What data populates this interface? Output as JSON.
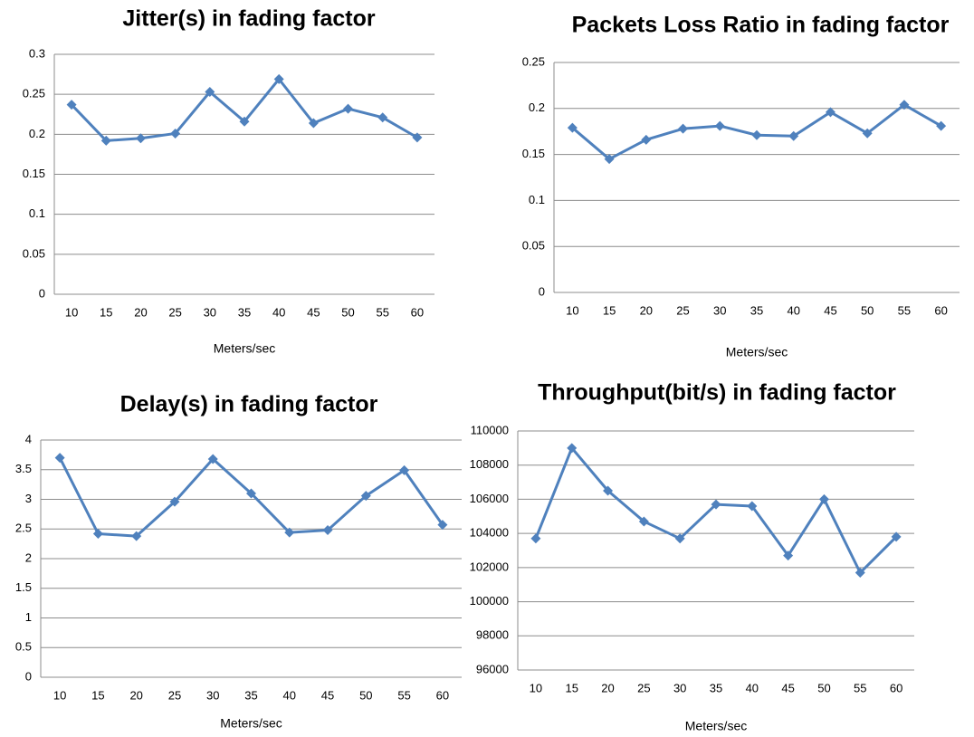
{
  "chart_data": [
    {
      "type": "line",
      "title": "Jitter(s) in fading factor",
      "x_label": "Meters/sec",
      "categories": [
        10,
        15,
        20,
        25,
        30,
        35,
        40,
        45,
        50,
        55,
        60
      ],
      "values": [
        0.237,
        0.192,
        0.195,
        0.201,
        0.253,
        0.216,
        0.269,
        0.214,
        0.232,
        0.221,
        0.196
      ],
      "color": "#4f81bd",
      "ylim": [
        0,
        0.3
      ],
      "yticks": [
        0,
        0.05,
        0.1,
        0.15,
        0.2,
        0.25,
        0.3
      ],
      "grid": true
    },
    {
      "type": "line",
      "title": "Packets Loss Ratio in fading factor",
      "x_label": "Meters/sec",
      "categories": [
        10,
        15,
        20,
        25,
        30,
        35,
        40,
        45,
        50,
        55,
        60
      ],
      "values": [
        0.179,
        0.145,
        0.166,
        0.178,
        0.181,
        0.171,
        0.17,
        0.196,
        0.173,
        0.204,
        0.181
      ],
      "color": "#4f81bd",
      "ylim": [
        0,
        0.25
      ],
      "yticks": [
        0,
        0.05,
        0.1,
        0.15,
        0.2,
        0.25
      ],
      "grid": true
    },
    {
      "type": "line",
      "title": "Delay(s) in fading factor",
      "x_label": "Meters/sec",
      "categories": [
        10,
        15,
        20,
        25,
        30,
        35,
        40,
        45,
        50,
        55,
        60
      ],
      "values": [
        3.7,
        2.42,
        2.38,
        2.96,
        3.68,
        3.1,
        2.44,
        2.48,
        3.06,
        3.49,
        2.57
      ],
      "color": "#4f81bd",
      "ylim": [
        0,
        4
      ],
      "yticks": [
        0,
        0.5,
        1,
        1.5,
        2,
        2.5,
        3,
        3.5,
        4
      ],
      "grid": true
    },
    {
      "type": "line",
      "title": "Throughput(bit/s) in fading factor",
      "x_label": "Meters/sec",
      "categories": [
        10,
        15,
        20,
        25,
        30,
        35,
        40,
        45,
        50,
        55,
        60
      ],
      "values": [
        103700,
        109000,
        106500,
        104700,
        103700,
        105700,
        105600,
        102700,
        106000,
        101700,
        103800
      ],
      "color": "#4f81bd",
      "ylim": [
        96000,
        110000
      ],
      "yticks": [
        96000,
        98000,
        100000,
        102000,
        104000,
        106000,
        108000,
        110000
      ],
      "grid": true
    }
  ]
}
